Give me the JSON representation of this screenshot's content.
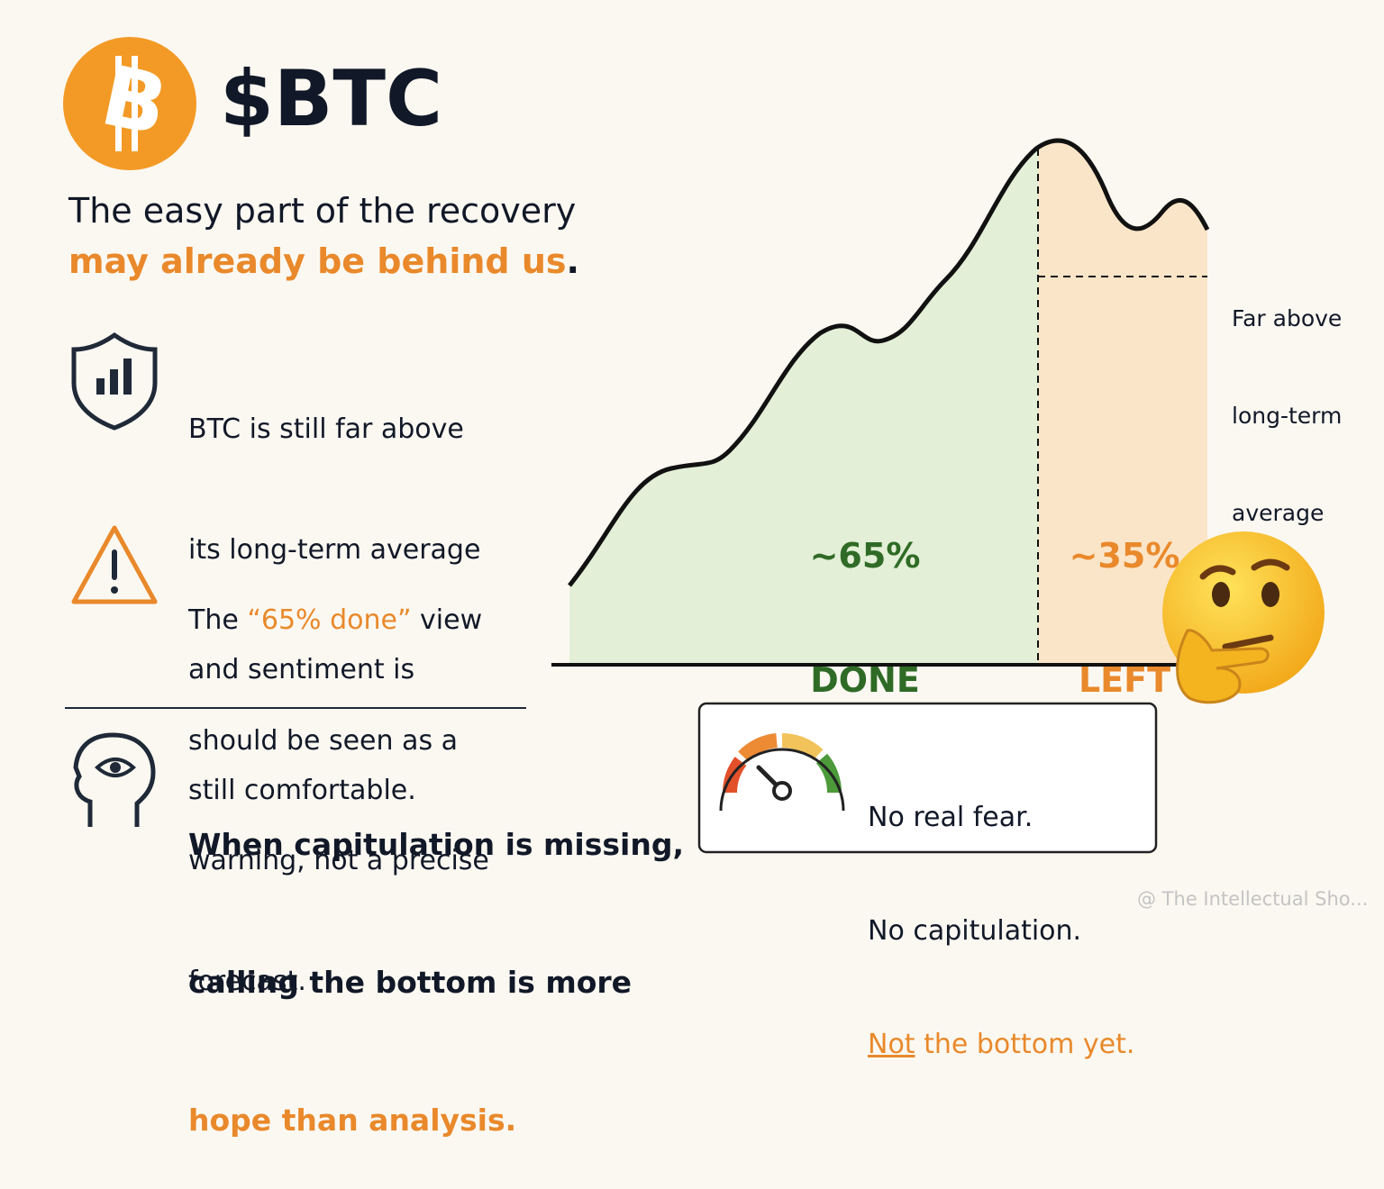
{
  "header": {
    "logo": "B",
    "title": "$BTC"
  },
  "headline": {
    "line1": "The easy part of the recovery",
    "highlight": "may already be behind us",
    "end": "."
  },
  "points": [
    {
      "lines": [
        "BTC is still far above",
        "its long-term average",
        "and sentiment is",
        "still comfortable."
      ]
    },
    {
      "lead": "The ",
      "highlight": "“65% done”",
      "tail": " view",
      "lines": [
        "should be seen as a",
        "warning, not a precise",
        "forecast."
      ]
    }
  ],
  "conclusion": {
    "lines": [
      "When capitulation is missing,",
      "calling the bottom is more"
    ],
    "highlight": "hope than analysis."
  },
  "chart": {
    "done_value": "~65%",
    "done_label": "DONE",
    "left_value": "~35%",
    "left_label": "LEFT",
    "annotation": [
      "Far above",
      "long-term",
      "average"
    ]
  },
  "callout": {
    "lines": [
      "No real fear.",
      "No capitulation."
    ],
    "underlined": "Not",
    "highlight": " the bottom yet."
  },
  "watermark": "@ The Intellectual Sho..."
}
